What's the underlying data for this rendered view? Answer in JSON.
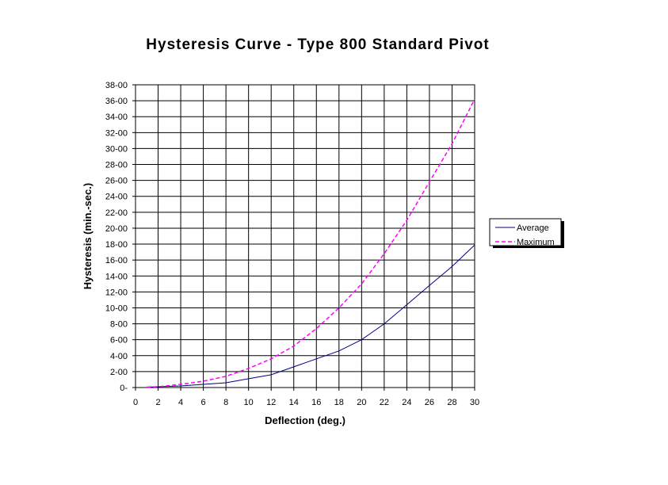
{
  "chart_data": {
    "type": "line",
    "title": "Hysteresis Curve - Type 800 Standard Pivot",
    "xlabel": "Deflection (deg.)",
    "ylabel": "Hysteresis (min.-sec.)",
    "xlim": [
      0,
      30
    ],
    "ylim": [
      0,
      38
    ],
    "x_ticks": [
      "0",
      "2",
      "4",
      "6",
      "8",
      "10",
      "12",
      "14",
      "16",
      "18",
      "20",
      "22",
      "24",
      "26",
      "28",
      "30"
    ],
    "y_ticks": [
      "0-",
      "2-00",
      "4-00",
      "6-00",
      "8-00",
      "10-00",
      "12-00",
      "14-00",
      "16-00",
      "18-00",
      "20-00",
      "22-00",
      "24-00",
      "26-00",
      "28-00",
      "30-00",
      "32-00",
      "34-00",
      "36-00",
      "38-00"
    ],
    "x_grid_step": 2,
    "y_grid_step": 2,
    "grid": true,
    "legend_position": "right",
    "series": [
      {
        "name": "Average",
        "color": "#000080",
        "dash": "solid",
        "x": [
          1,
          2,
          4,
          6,
          8,
          10,
          12,
          14,
          16,
          18,
          20,
          21,
          22,
          24,
          26,
          28,
          30
        ],
        "y": [
          0.05,
          0.1,
          0.2,
          0.4,
          0.6,
          1.1,
          1.6,
          2.6,
          3.6,
          4.6,
          6.0,
          7.0,
          8.0,
          10.4,
          12.8,
          15.2,
          17.9
        ]
      },
      {
        "name": "Maximum",
        "color": "#FF00FF",
        "dash": "dashed",
        "x": [
          1,
          2,
          4,
          6,
          8,
          10,
          12,
          14,
          16,
          18,
          20,
          22,
          24,
          26,
          28,
          30
        ],
        "y": [
          0.05,
          0.1,
          0.4,
          0.8,
          1.4,
          2.4,
          3.6,
          5.2,
          7.4,
          10.0,
          13.0,
          16.8,
          21.0,
          25.8,
          30.6,
          36.2
        ]
      }
    ]
  }
}
